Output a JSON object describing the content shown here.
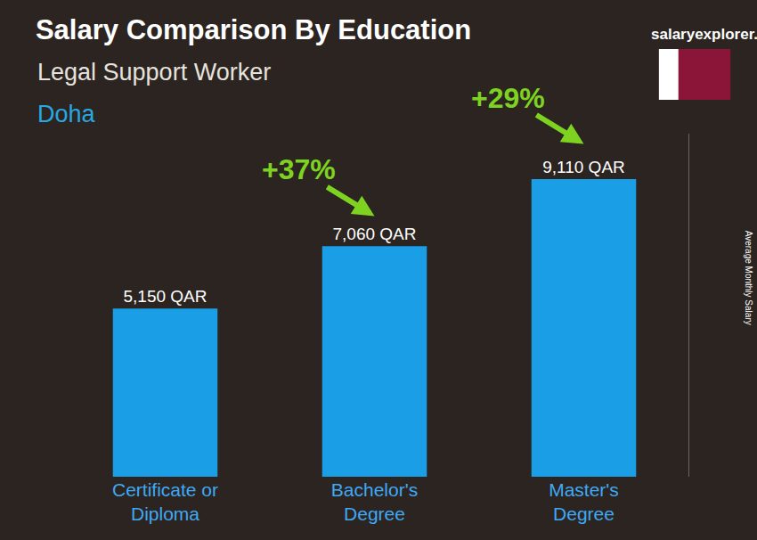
{
  "chart_data": {
    "type": "bar",
    "title": "Salary Comparison By Education",
    "subtitle": "Legal Support Worker",
    "location": "Doha",
    "source": "salaryexplorer.com",
    "y_label": "Average Monthly Salary",
    "categories": [
      "Certificate or Diploma",
      "Bachelor's Degree",
      "Master's Degree"
    ],
    "values": [
      5150,
      7060,
      9110
    ],
    "value_labels": [
      "5,150 QAR",
      "7,060 QAR",
      "9,110 QAR"
    ],
    "color": "#1a9fe6",
    "ylim": [
      0,
      10500
    ],
    "tick_labels": "x",
    "data_labels": true,
    "grid": false,
    "annotations": [
      "+37%",
      "+29%"
    ]
  }
}
